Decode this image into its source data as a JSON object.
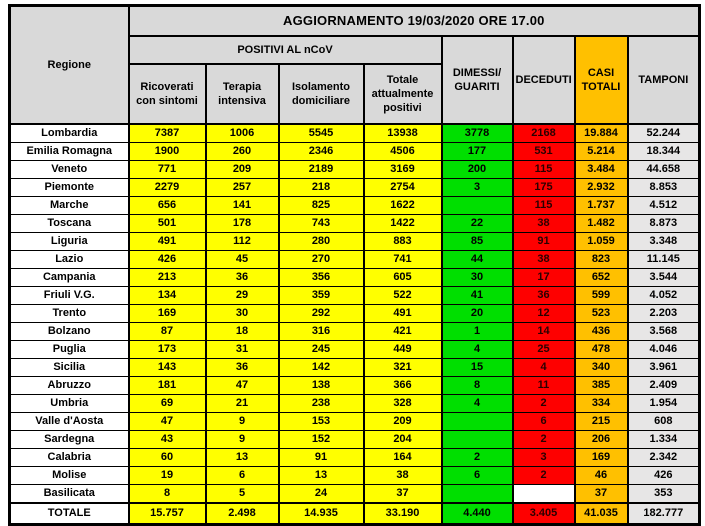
{
  "chart_data": {
    "type": "table",
    "title": "AGGIORNAMENTO 19/03/2020 ORE 17.00",
    "header": {
      "regione": "Regione",
      "positivi_group": "POSITIVI AL nCoV",
      "columns": [
        "Ricoverati\ncon sintomi",
        "Terapia\nintensiva",
        "Isolamento\ndomiciliare",
        "Totale\nattualmente\npositivi",
        "DIMESSI/\nGUARITI",
        "DECEDUTI",
        "CASI\nTOTALI",
        "TAMPONI"
      ]
    },
    "rows": [
      {
        "regione": "Lombardia",
        "values": [
          "7387",
          "1006",
          "5545",
          "13938",
          "3778",
          "2168",
          "19.884",
          "52.244"
        ]
      },
      {
        "regione": "Emilia Romagna",
        "values": [
          "1900",
          "260",
          "2346",
          "4506",
          "177",
          "531",
          "5.214",
          "18.344"
        ]
      },
      {
        "regione": "Veneto",
        "values": [
          "771",
          "209",
          "2189",
          "3169",
          "200",
          "115",
          "3.484",
          "44.658"
        ]
      },
      {
        "regione": "Piemonte",
        "values": [
          "2279",
          "257",
          "218",
          "2754",
          "3",
          "175",
          "2.932",
          "8.853"
        ]
      },
      {
        "regione": "Marche",
        "values": [
          "656",
          "141",
          "825",
          "1622",
          "",
          "115",
          "1.737",
          "4.512"
        ]
      },
      {
        "regione": "Toscana",
        "values": [
          "501",
          "178",
          "743",
          "1422",
          "22",
          "38",
          "1.482",
          "8.873"
        ]
      },
      {
        "regione": "Liguria",
        "values": [
          "491",
          "112",
          "280",
          "883",
          "85",
          "91",
          "1.059",
          "3.348"
        ]
      },
      {
        "regione": "Lazio",
        "values": [
          "426",
          "45",
          "270",
          "741",
          "44",
          "38",
          "823",
          "11.145"
        ]
      },
      {
        "regione": "Campania",
        "values": [
          "213",
          "36",
          "356",
          "605",
          "30",
          "17",
          "652",
          "3.544"
        ]
      },
      {
        "regione": "Friuli V.G.",
        "values": [
          "134",
          "29",
          "359",
          "522",
          "41",
          "36",
          "599",
          "4.052"
        ]
      },
      {
        "regione": "Trento",
        "values": [
          "169",
          "30",
          "292",
          "491",
          "20",
          "12",
          "523",
          "2.203"
        ]
      },
      {
        "regione": "Bolzano",
        "values": [
          "87",
          "18",
          "316",
          "421",
          "1",
          "14",
          "436",
          "3.568"
        ]
      },
      {
        "regione": "Puglia",
        "values": [
          "173",
          "31",
          "245",
          "449",
          "4",
          "25",
          "478",
          "4.046"
        ]
      },
      {
        "regione": "Sicilia",
        "values": [
          "143",
          "36",
          "142",
          "321",
          "15",
          "4",
          "340",
          "3.961"
        ]
      },
      {
        "regione": "Abruzzo",
        "values": [
          "181",
          "47",
          "138",
          "366",
          "8",
          "11",
          "385",
          "2.409"
        ]
      },
      {
        "regione": "Umbria",
        "values": [
          "69",
          "21",
          "238",
          "328",
          "4",
          "2",
          "334",
          "1.954"
        ]
      },
      {
        "regione": "Valle d'Aosta",
        "values": [
          "47",
          "9",
          "153",
          "209",
          "",
          "6",
          "215",
          "608"
        ]
      },
      {
        "regione": "Sardegna",
        "values": [
          "43",
          "9",
          "152",
          "204",
          "",
          "2",
          "206",
          "1.334"
        ]
      },
      {
        "regione": "Calabria",
        "values": [
          "60",
          "13",
          "91",
          "164",
          "2",
          "3",
          "169",
          "2.342"
        ]
      },
      {
        "regione": "Molise",
        "values": [
          "19",
          "6",
          "13",
          "38",
          "6",
          "2",
          "46",
          "426"
        ]
      },
      {
        "regione": "Basilicata",
        "values": [
          "8",
          "5",
          "24",
          "37",
          "",
          null,
          "37",
          "353"
        ]
      }
    ],
    "totale": {
      "regione": "TOTALE",
      "values": [
        "15.757",
        "2.498",
        "14.935",
        "33.190",
        "4.440",
        "3.405",
        "41.035",
        "182.777"
      ]
    }
  },
  "colors": {
    "header_gray": "#d9d9d9",
    "positivi_yellow": "#ffff00",
    "dimessi_green": "#00df00",
    "deceduti_red": "#fe0000",
    "casi_orange": "#ffc000",
    "tamponi_gray": "#e7e6e6",
    "border_black": "#000000"
  }
}
